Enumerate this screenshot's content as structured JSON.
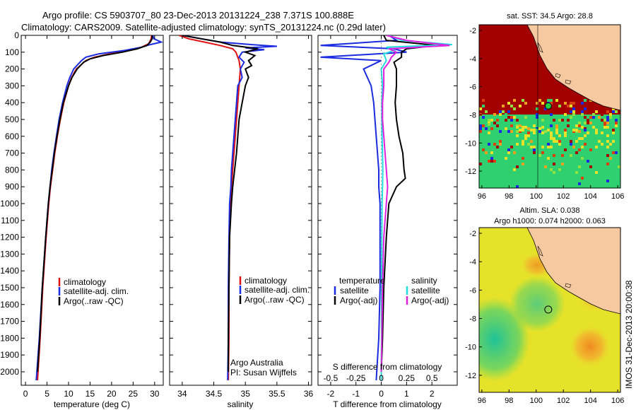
{
  "header": {
    "line1": "Argo profile: CS 5903707_80 23-Dec-2013 20131224_238 7.371S 100.888E",
    "line2": "Climatology: CARS2009. Satellite-adjusted climatology: synTS_20131224.nc (0.29d later)"
  },
  "side_stamp": "IMOS 31-Dec-2013 20:00:38",
  "colors": {
    "climatology": "#e01010",
    "satellite": "#1a2be0",
    "argo": "#000000",
    "sat_salinity": "#22dddd",
    "argo_adj_salinity": "#e020e0",
    "map_land": "#f7c9a0",
    "map_warm": "#a30000",
    "map_green": "#2fd070",
    "map_yellow": "#e6e22a"
  },
  "chart_data": [
    {
      "type": "line",
      "panel": "temperature",
      "xlabel": "temperature (deg C)",
      "ylabel": "",
      "xlim": [
        -1,
        32
      ],
      "ylim": [
        2080,
        0
      ],
      "xticks": [
        0,
        5,
        10,
        15,
        20,
        25,
        30
      ],
      "yticks": [
        0,
        100,
        200,
        300,
        400,
        500,
        600,
        700,
        800,
        900,
        1000,
        1100,
        1200,
        1300,
        1400,
        1500,
        1600,
        1700,
        1800,
        1900,
        2000
      ],
      "legend": {
        "position": "lower-center",
        "entries": [
          "climatology",
          "satellite-adj. clim.",
          "Argo(..raw -QC)"
        ]
      },
      "series": [
        {
          "name": "climatology",
          "color": "#e01010",
          "depth": [
            0,
            20,
            50,
            70,
            90,
            110,
            130,
            150,
            200,
            250,
            300,
            400,
            500,
            600,
            700,
            800,
            900,
            1000,
            1200,
            1500,
            1800,
            2050
          ],
          "values": [
            29.3,
            29.2,
            28.6,
            27.0,
            24.0,
            19.5,
            16.0,
            14.0,
            11.8,
            10.7,
            10.0,
            8.9,
            8.1,
            7.4,
            6.8,
            6.3,
            5.8,
            5.4,
            4.8,
            4.0,
            3.4,
            2.8
          ]
        },
        {
          "name": "satellite-adj. clim.",
          "color": "#1a2be0",
          "depth": [
            0,
            20,
            40,
            55,
            70,
            90,
            110,
            130,
            150,
            200,
            250,
            300,
            400,
            500,
            600,
            700,
            800,
            900,
            1000,
            1200,
            1500,
            1800,
            2050
          ],
          "values": [
            29.6,
            29.8,
            31.5,
            29.0,
            27.0,
            23.0,
            17.0,
            14.0,
            13.0,
            11.2,
            10.3,
            9.6,
            8.6,
            7.8,
            7.2,
            6.6,
            6.1,
            5.7,
            5.3,
            4.7,
            3.9,
            3.2,
            2.5
          ]
        },
        {
          "name": "Argo(..raw -QC)",
          "color": "#000000",
          "depth": [
            0,
            20,
            40,
            60,
            80,
            100,
            120,
            140,
            160,
            200,
            250,
            300,
            400,
            500,
            600,
            700,
            800,
            900,
            1000,
            1200,
            1500,
            1800,
            2000
          ],
          "values": [
            29.4,
            29.4,
            29.0,
            28.2,
            26.0,
            22.5,
            18.0,
            15.0,
            13.5,
            12.0,
            10.8,
            10.0,
            8.8,
            8.0,
            7.3,
            6.7,
            6.2,
            5.7,
            5.3,
            4.7,
            3.9,
            3.3,
            2.8
          ]
        }
      ]
    },
    {
      "type": "line",
      "panel": "salinity",
      "xlabel": "salinity",
      "ylabel": "",
      "xlim": [
        33.8,
        36.05
      ],
      "ylim": [
        2080,
        0
      ],
      "xticks": [
        34,
        34.5,
        35,
        35.5,
        36
      ],
      "legend": {
        "position": "lower-center",
        "entries": [
          "climatology",
          "satellite-adj. clim.",
          "Argo(..raw -QC)"
        ]
      },
      "annotation": [
        "Argo Australia",
        "PI: Susan Wijffels"
      ],
      "series": [
        {
          "name": "climatology",
          "color": "#e01010",
          "depth": [
            0,
            20,
            40,
            60,
            80,
            100,
            150,
            200,
            300,
            400,
            500,
            600,
            700,
            800,
            900,
            1000,
            1200,
            1500,
            1800,
            2050
          ],
          "values": [
            33.95,
            34.1,
            34.35,
            34.6,
            34.8,
            34.85,
            34.9,
            34.92,
            34.9,
            34.88,
            34.86,
            34.84,
            34.82,
            34.8,
            34.78,
            34.76,
            34.75,
            34.74,
            34.74,
            34.73
          ]
        },
        {
          "name": "satellite-adj. clim.",
          "color": "#1a2be0",
          "depth": [
            0,
            20,
            40,
            55,
            65,
            75,
            85,
            100,
            130,
            160,
            200,
            250,
            300,
            400,
            500,
            600,
            700,
            800,
            900,
            1000,
            1200,
            1500,
            1800,
            2050
          ],
          "values": [
            34.0,
            34.3,
            34.6,
            35.1,
            35.5,
            35.0,
            35.3,
            34.95,
            34.9,
            34.98,
            34.92,
            34.95,
            34.88,
            34.86,
            34.84,
            34.82,
            34.8,
            34.78,
            34.77,
            34.75,
            34.74,
            34.73,
            34.73,
            34.72
          ]
        },
        {
          "name": "Argo(..raw -QC)",
          "color": "#000000",
          "depth": [
            0,
            20,
            40,
            60,
            80,
            100,
            120,
            150,
            180,
            200,
            250,
            300,
            400,
            500,
            600,
            700,
            800,
            900,
            1000,
            1200,
            1500,
            1800,
            2000
          ],
          "values": [
            34.0,
            34.3,
            34.6,
            34.8,
            35.2,
            35.0,
            35.15,
            35.05,
            35.1,
            35.0,
            35.05,
            35.0,
            34.95,
            34.9,
            34.88,
            34.86,
            34.83,
            34.8,
            34.78,
            34.75,
            34.74,
            34.73,
            34.73
          ]
        }
      ]
    },
    {
      "type": "line",
      "panel": "difference",
      "xlabel": "T difference from climatology",
      "xlabel_top": "S difference from climatology",
      "xlim": [
        -2.5,
        3.0
      ],
      "ylim": [
        2080,
        0
      ],
      "xticks": [
        -2,
        -1,
        0,
        1,
        2
      ],
      "xticks_top": [
        -0.5,
        -0.25,
        0,
        0.25,
        0.5
      ],
      "legend": {
        "position": "lower-center",
        "temperature_label": "temperature",
        "salinity_label": "salinity",
        "entries": [
          "satellite",
          "Argo(-adj)",
          "satellite",
          "Argo(-adj)"
        ]
      },
      "series": [
        {
          "name": "satellite",
          "color": "#1a2be0",
          "depth": [
            0,
            30,
            60,
            80,
            100,
            130,
            150,
            200,
            300,
            400,
            500,
            600,
            700,
            800,
            900,
            1000,
            1200,
            1500,
            1800,
            2050
          ],
          "values": [
            0.3,
            0.6,
            -2.4,
            0.5,
            1.0,
            -2.4,
            0.0,
            -0.7,
            -0.4,
            -0.3,
            -0.25,
            -0.2,
            -0.15,
            -0.1,
            -0.1,
            -0.05,
            -0.05,
            -0.05,
            -0.1,
            -0.2
          ]
        },
        {
          "name": "Argo(-adj)",
          "color": "#000000",
          "depth": [
            0,
            30,
            60,
            80,
            100,
            130,
            160,
            200,
            300,
            400,
            500,
            600,
            700,
            800,
            850,
            900,
            1000,
            1200,
            1500,
            1800,
            2000
          ],
          "values": [
            0.1,
            0.2,
            2.2,
            1.0,
            0.8,
            0.8,
            0.5,
            0.6,
            0.6,
            0.55,
            0.6,
            0.7,
            0.85,
            0.9,
            0.95,
            0.6,
            0.3,
            0.2,
            0.1,
            0.05,
            0.0
          ]
        },
        {
          "name": "satellite",
          "color": "#22dddd",
          "depth": [
            0,
            30,
            55,
            70,
            90,
            110,
            150,
            200,
            300,
            400,
            500,
            600,
            700,
            800,
            900,
            1000,
            1200,
            1500,
            1800,
            2050
          ],
          "values": [
            0.3,
            0.8,
            2.8,
            0.2,
            0.5,
            0.1,
            0.2,
            0.0,
            0.05,
            0.02,
            0.02,
            0.03,
            0.05,
            0.06,
            0.05,
            0.03,
            0.02,
            0.01,
            0.01,
            0.0
          ]
        },
        {
          "name": "Argo(-adj)",
          "color": "#e020e0",
          "depth": [
            0,
            30,
            60,
            80,
            100,
            130,
            160,
            200,
            300,
            400,
            500,
            600,
            700,
            800,
            900,
            1000,
            1200,
            1500,
            1800,
            2000
          ],
          "values": [
            0.2,
            1.0,
            2.7,
            0.3,
            0.6,
            0.4,
            0.3,
            0.1,
            0.1,
            0.05,
            0.05,
            0.1,
            0.15,
            0.2,
            0.25,
            0.2,
            0.1,
            0.05,
            0.02,
            0.0
          ]
        }
      ]
    },
    {
      "type": "heatmap",
      "panel": "sst-map",
      "title": "sat. SST: 34.5 Argo: 28.8",
      "xlim": [
        95.8,
        106.2
      ],
      "ylim": [
        -13.2,
        -1.6
      ],
      "xticks": [
        96,
        98,
        100,
        102,
        104,
        106
      ],
      "yticks": [
        -2,
        -4,
        -6,
        -8,
        -10,
        -12
      ],
      "marker": {
        "lon": 100.888,
        "lat": -7.371
      }
    },
    {
      "type": "heatmap",
      "panel": "sla-map",
      "title": "Altim. SLA: 0.038",
      "subtitle": "Argo h1000: 0.074 h2000: 0.063",
      "xlim": [
        95.8,
        106.2
      ],
      "ylim": [
        -13.2,
        -1.6
      ],
      "xticks": [
        96,
        98,
        100,
        102,
        104,
        106
      ],
      "yticks": [
        -2,
        -4,
        -6,
        -8,
        -10,
        -12
      ],
      "marker": {
        "lon": 100.888,
        "lat": -7.371
      }
    }
  ]
}
